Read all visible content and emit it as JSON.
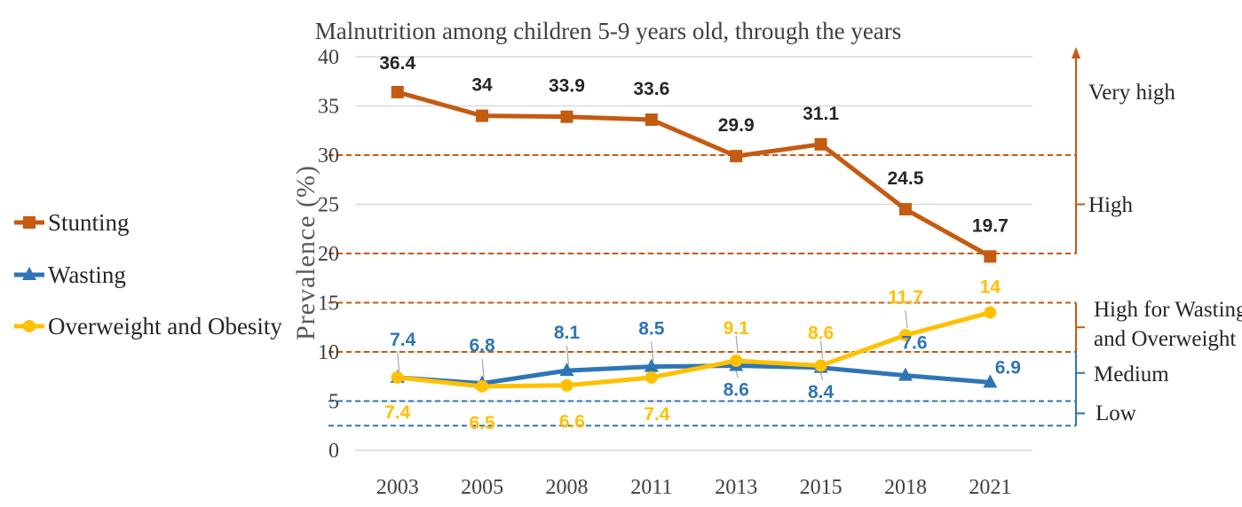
{
  "chart_data": {
    "type": "line",
    "title": "Malnutrition among children 5-9 years old, through the years",
    "ylabel": "Prevalence (%)",
    "xlabel": "",
    "categories": [
      "2003",
      "2005",
      "2008",
      "2011",
      "2013",
      "2015",
      "2018",
      "2021"
    ],
    "ylim": [
      0,
      40
    ],
    "yticks": [
      "0",
      "5",
      "10",
      "15",
      "20",
      "25",
      "30",
      "35",
      "40"
    ],
    "grid": true,
    "legend_position": "left",
    "series": [
      {
        "name": "Stunting",
        "values": [
          36.4,
          34,
          33.9,
          33.6,
          29.9,
          31.1,
          24.5,
          19.7
        ],
        "labels": [
          "36.4",
          "34",
          "33.9",
          "33.6",
          "29.9",
          "31.1",
          "24.5",
          "19.7"
        ],
        "color": "#C55A11",
        "label_color": "#262626",
        "marker": "square"
      },
      {
        "name": "Wasting",
        "values": [
          7.4,
          6.8,
          8.1,
          8.5,
          8.6,
          8.4,
          7.6,
          6.9
        ],
        "labels": [
          "7.4",
          "6.8",
          "8.1",
          "8.5",
          "8.6",
          "8.4",
          "7.6",
          "6.9"
        ],
        "color": "#2E75B6",
        "label_color": "#2E75B6",
        "marker": "triangle"
      },
      {
        "name": "Overweight and Obesity",
        "values": [
          7.4,
          6.5,
          6.6,
          7.4,
          9.1,
          8.6,
          11.7,
          14
        ],
        "labels": [
          "7.4",
          "6.5",
          "6.6",
          "7.4",
          "9.1",
          "8.6",
          "11.7",
          "14"
        ],
        "color": "#FFC000",
        "label_color": "#FFC000",
        "marker": "circle"
      }
    ],
    "thresholds": [
      {
        "value": 30,
        "color": "#C55A11"
      },
      {
        "value": 20,
        "color": "#C55A11"
      },
      {
        "value": 15,
        "color": "#C55A11"
      },
      {
        "value": 10,
        "color": "#C55A11"
      },
      {
        "value": 5,
        "color": "#2E75B6"
      },
      {
        "value": 2.5,
        "color": "#2E75B6"
      }
    ],
    "bands": [
      {
        "label": "Very high",
        "color": "#C55A11"
      },
      {
        "label": "High",
        "color": "#C55A11"
      },
      {
        "label": "High for Wasting",
        "label2": "and Overweight",
        "color": "#C55A11"
      },
      {
        "label": "Medium",
        "color": "#2E75B6"
      },
      {
        "label": "Low",
        "color": "#2E75B6"
      }
    ]
  }
}
